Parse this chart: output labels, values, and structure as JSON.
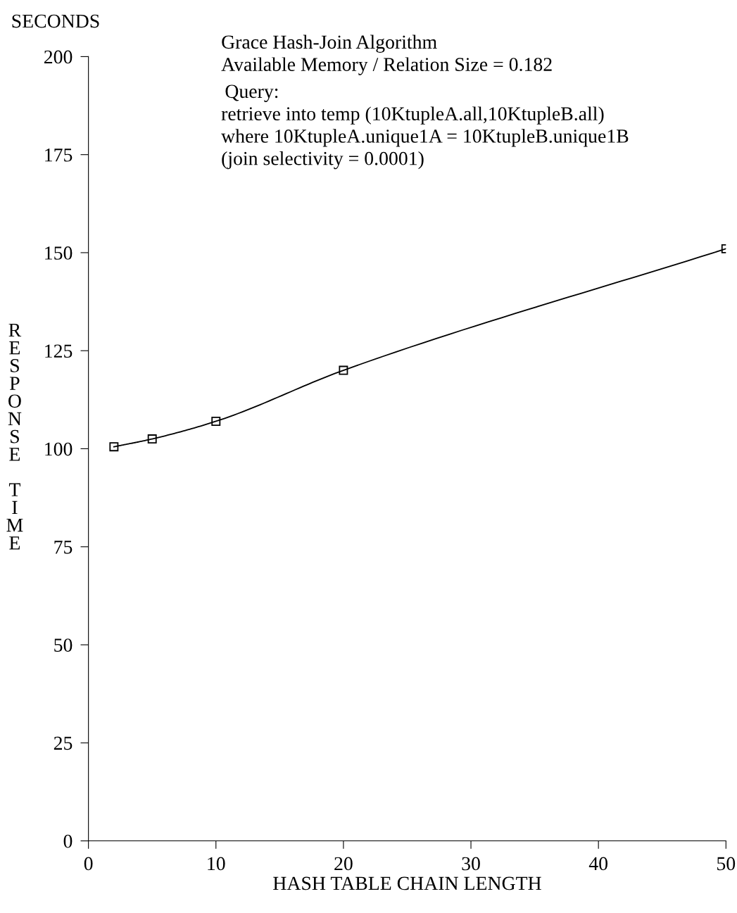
{
  "chart_data": {
    "type": "line",
    "ylabel": "RESPONSE TIME",
    "xlabel": "HASH TABLE CHAIN LENGTH",
    "annotations": [
      "SECONDS",
      "Grace Hash-Join Algorithm",
      "Available Memory / Relation Size = 0.182",
      "Query:",
      "retrieve into temp (10KtupleA.all,10KtupleB.all)",
      "where 10KtupleA.unique1A = 10KtupleB.unique1B",
      "(join selectivity = 0.0001)"
    ],
    "x": [
      2,
      5,
      10,
      20,
      50
    ],
    "series": [
      {
        "color": "#000000",
        "values": [
          100.5,
          102.5,
          107,
          120,
          151
        ]
      }
    ],
    "xlim": [
      0,
      50
    ],
    "xticks": [
      0,
      10,
      20,
      30,
      40,
      50
    ],
    "ylim": [
      0,
      200
    ],
    "yticks": [
      0,
      25,
      50,
      75,
      100,
      125,
      150,
      175,
      200
    ],
    "grid": false,
    "legend": false,
    "marker": "square",
    "line_style": "solid"
  }
}
